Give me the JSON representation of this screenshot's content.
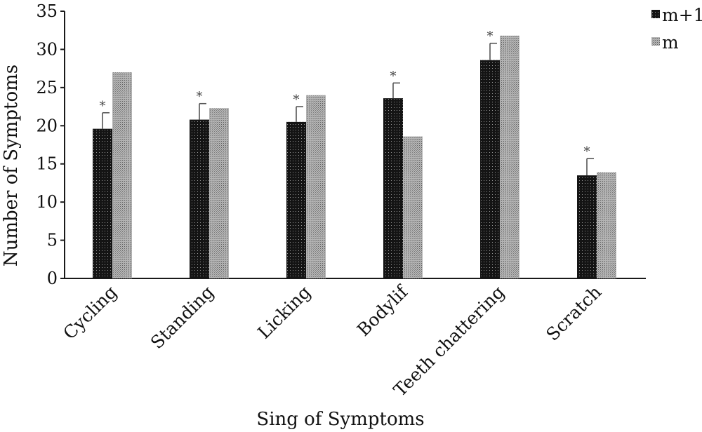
{
  "chart_data": {
    "type": "bar",
    "xlabel": "Sing of Symptoms",
    "ylabel": "Number of Symptoms",
    "ylim": [
      0,
      35
    ],
    "yticks": [
      0,
      5,
      10,
      15,
      20,
      25,
      30,
      35
    ],
    "categories": [
      "Cycling",
      "Standing",
      "Licking",
      "Bodylif",
      "Teeth chattering",
      "Scratch"
    ],
    "series": [
      {
        "name": "m+1",
        "values": [
          19.6,
          20.8,
          20.5,
          23.6,
          28.6,
          13.5
        ],
        "error": [
          2.1,
          2.1,
          2.0,
          2.0,
          2.2,
          2.2
        ],
        "annotations": [
          "*",
          "*",
          "*",
          "*",
          "*",
          "*"
        ]
      },
      {
        "name": "m",
        "values": [
          27.0,
          22.3,
          24.0,
          18.6,
          31.8,
          13.9
        ]
      }
    ],
    "legend_position": "top-right",
    "grid": false
  },
  "colors": {
    "m+1": "#141414",
    "m": "#a4a4a4",
    "axis": "#1a1a1a"
  }
}
